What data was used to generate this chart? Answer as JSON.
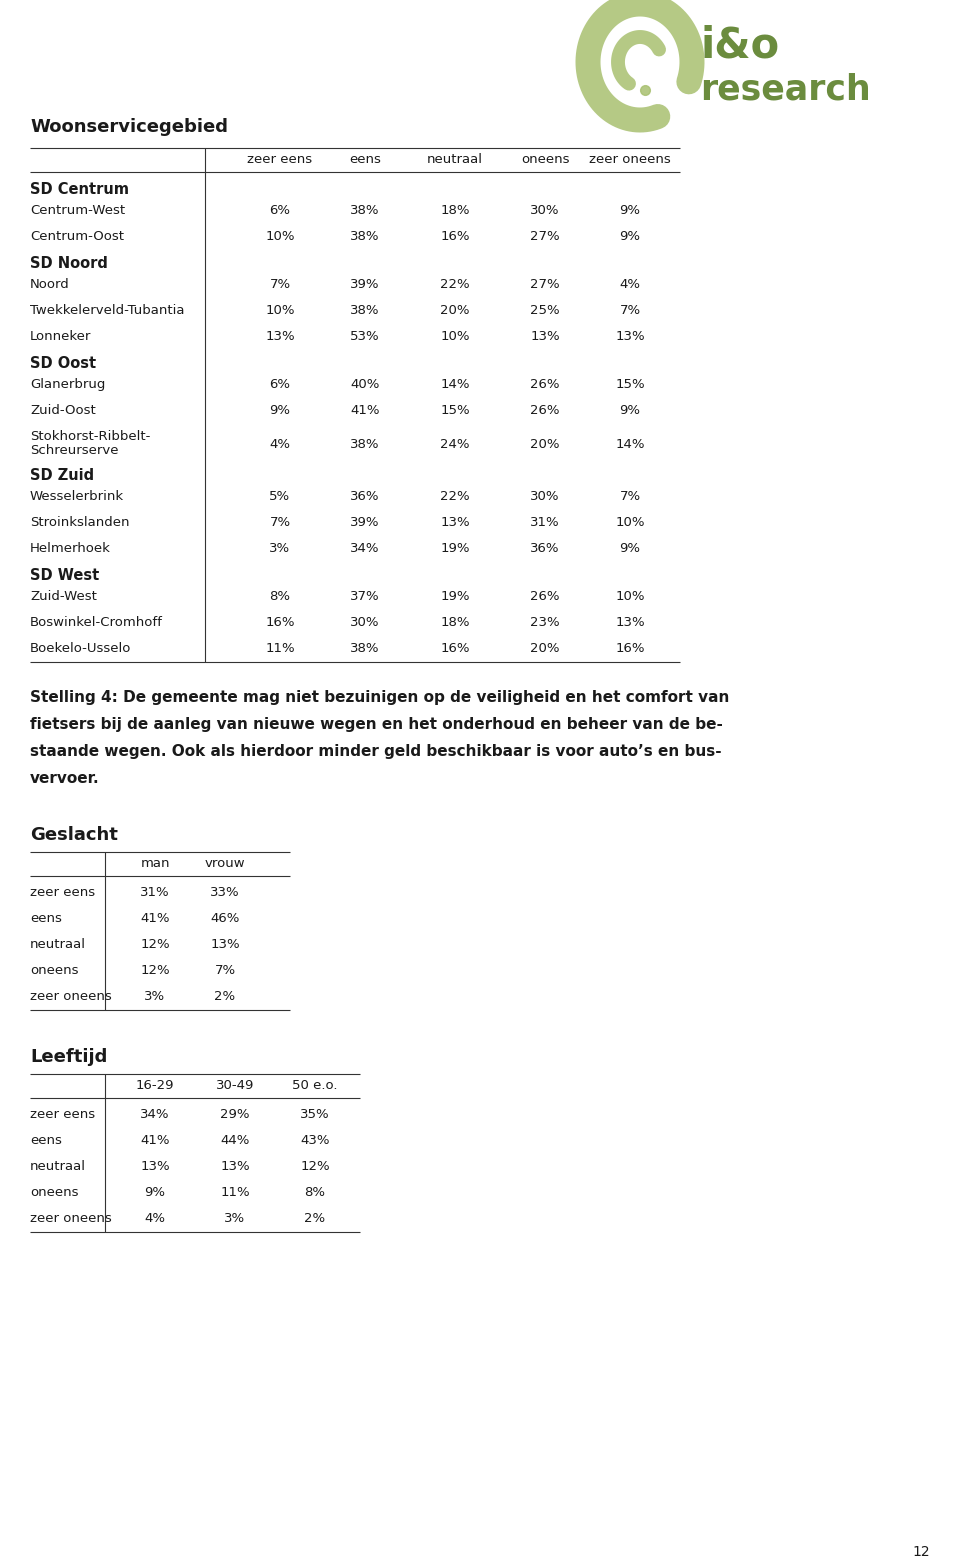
{
  "logo_color": "#6b8c3e",
  "logo_color_light": "#a8c070",
  "section_title": "Woonservicegebied",
  "table1_header": [
    "",
    "zeer eens",
    "eens",
    "neutraal",
    "oneens",
    "zeer oneens"
  ],
  "table1_groups": [
    {
      "group": "SD Centrum",
      "rows": [
        [
          "Centrum-West",
          "6%",
          "38%",
          "18%",
          "30%",
          "9%"
        ],
        [
          "Centrum-Oost",
          "10%",
          "38%",
          "16%",
          "27%",
          "9%"
        ]
      ]
    },
    {
      "group": "SD Noord",
      "rows": [
        [
          "Noord",
          "7%",
          "39%",
          "22%",
          "27%",
          "4%"
        ],
        [
          "Twekkelerveld-Tubantia",
          "10%",
          "38%",
          "20%",
          "25%",
          "7%"
        ],
        [
          "Lonneker",
          "13%",
          "53%",
          "10%",
          "13%",
          "13%"
        ]
      ]
    },
    {
      "group": "SD Oost",
      "rows": [
        [
          "Glanerbrug",
          "6%",
          "40%",
          "14%",
          "26%",
          "15%"
        ],
        [
          "Zuid-Oost",
          "9%",
          "41%",
          "15%",
          "26%",
          "9%"
        ],
        [
          "Stokhorst-Ribbelt-|Schreurserve",
          "4%",
          "38%",
          "24%",
          "20%",
          "14%"
        ]
      ]
    },
    {
      "group": "SD Zuid",
      "rows": [
        [
          "Wesselerbrink",
          "5%",
          "36%",
          "22%",
          "30%",
          "7%"
        ],
        [
          "Stroinkslanden",
          "7%",
          "39%",
          "13%",
          "31%",
          "10%"
        ],
        [
          "Helmerhoek",
          "3%",
          "34%",
          "19%",
          "36%",
          "9%"
        ]
      ]
    },
    {
      "group": "SD West",
      "rows": [
        [
          "Zuid-West",
          "8%",
          "37%",
          "19%",
          "26%",
          "10%"
        ],
        [
          "Boswinkel-Cromhoff",
          "16%",
          "30%",
          "18%",
          "23%",
          "13%"
        ],
        [
          "Boekelo-Usselo",
          "11%",
          "38%",
          "16%",
          "20%",
          "16%"
        ]
      ]
    }
  ],
  "stelling_text_lines": [
    "Stelling 4: De gemeente mag niet bezuinigen op de veiligheid en het comfort van",
    "fietsers bij de aanleg van nieuwe wegen en het onderhoud en beheer van de be-",
    "staande wegen. Ook als hierdoor minder geld beschikbaar is voor auto’s en bus-",
    "vervoer."
  ],
  "geslacht_title": "Geslacht",
  "geslacht_header": [
    "",
    "man",
    "vrouw"
  ],
  "geslacht_rows": [
    [
      "zeer eens",
      "31%",
      "33%"
    ],
    [
      "eens",
      "41%",
      "46%"
    ],
    [
      "neutraal",
      "12%",
      "13%"
    ],
    [
      "oneens",
      "12%",
      "7%"
    ],
    [
      "zeer oneens",
      "3%",
      "2%"
    ]
  ],
  "leeftijd_title": "Leeftijd",
  "leeftijd_header": [
    "",
    "16-29",
    "30-49",
    "50 e.o."
  ],
  "leeftijd_rows": [
    [
      "zeer eens",
      "34%",
      "29%",
      "35%"
    ],
    [
      "eens",
      "41%",
      "44%",
      "43%"
    ],
    [
      "neutraal",
      "13%",
      "13%",
      "12%"
    ],
    [
      "oneens",
      "9%",
      "11%",
      "8%"
    ],
    [
      "zeer oneens",
      "4%",
      "3%",
      "2%"
    ]
  ],
  "page_number": "12",
  "bg_color": "#ffffff",
  "text_color": "#1a1a1a"
}
